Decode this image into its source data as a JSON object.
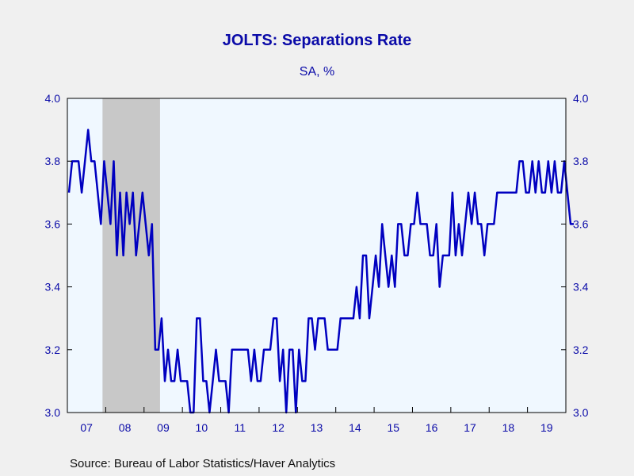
{
  "chart_data": {
    "type": "line",
    "title": "JOLTS: Separations Rate",
    "subtitle": "SA, %",
    "source": "Source:  Bureau of Labor Statistics/Haver Analytics",
    "ylim": [
      3.0,
      4.0
    ],
    "y_ticks": [
      "3.0",
      "3.2",
      "3.4",
      "3.6",
      "3.8",
      "4.0"
    ],
    "x_start": "2007-01",
    "x_tick_labels": [
      "07",
      "08",
      "09",
      "10",
      "11",
      "12",
      "13",
      "14",
      "15",
      "16",
      "17",
      "18",
      "19"
    ],
    "grid": false,
    "recession_shading": {
      "start": "2007-12",
      "end": "2009-06"
    },
    "colors": {
      "line": "#0000c0",
      "axis": "#000000",
      "plot_bg": "#f0f8ff",
      "page_bg": "#f0f0f0",
      "recession": "#c8c8c8",
      "text": "#0a0aa8"
    },
    "series": [
      {
        "values": [
          3.7,
          3.8,
          3.8,
          3.8,
          3.7,
          3.8,
          3.9,
          3.8,
          3.8,
          3.7,
          3.6,
          3.8,
          3.7,
          3.6,
          3.8,
          3.5,
          3.7,
          3.5,
          3.7,
          3.6,
          3.7,
          3.5,
          3.6,
          3.7,
          3.6,
          3.5,
          3.6,
          3.2,
          3.2,
          3.3,
          3.1,
          3.2,
          3.1,
          3.1,
          3.2,
          3.1,
          3.1,
          3.1,
          3.0,
          3.0,
          3.3,
          3.3,
          3.1,
          3.1,
          3.0,
          3.1,
          3.2,
          3.1,
          3.1,
          3.1,
          3.0,
          3.2,
          3.2,
          3.2,
          3.2,
          3.2,
          3.2,
          3.1,
          3.2,
          3.1,
          3.1,
          3.2,
          3.2,
          3.2,
          3.3,
          3.3,
          3.1,
          3.2,
          3.0,
          3.2,
          3.2,
          3.0,
          3.2,
          3.1,
          3.1,
          3.3,
          3.3,
          3.2,
          3.3,
          3.3,
          3.3,
          3.2,
          3.2,
          3.2,
          3.2,
          3.3,
          3.3,
          3.3,
          3.3,
          3.3,
          3.4,
          3.3,
          3.5,
          3.5,
          3.3,
          3.4,
          3.5,
          3.4,
          3.6,
          3.5,
          3.4,
          3.5,
          3.4,
          3.6,
          3.6,
          3.5,
          3.5,
          3.6,
          3.6,
          3.7,
          3.6,
          3.6,
          3.6,
          3.5,
          3.5,
          3.6,
          3.4,
          3.5,
          3.5,
          3.5,
          3.7,
          3.5,
          3.6,
          3.5,
          3.6,
          3.7,
          3.6,
          3.7,
          3.6,
          3.6,
          3.5,
          3.6,
          3.6,
          3.6,
          3.7,
          3.7,
          3.7,
          3.7,
          3.7,
          3.7,
          3.7,
          3.8,
          3.8,
          3.7,
          3.7,
          3.8,
          3.7,
          3.8,
          3.7,
          3.7,
          3.8,
          3.7,
          3.8,
          3.7,
          3.7,
          3.8,
          3.7,
          3.6,
          3.6
        ]
      }
    ]
  }
}
